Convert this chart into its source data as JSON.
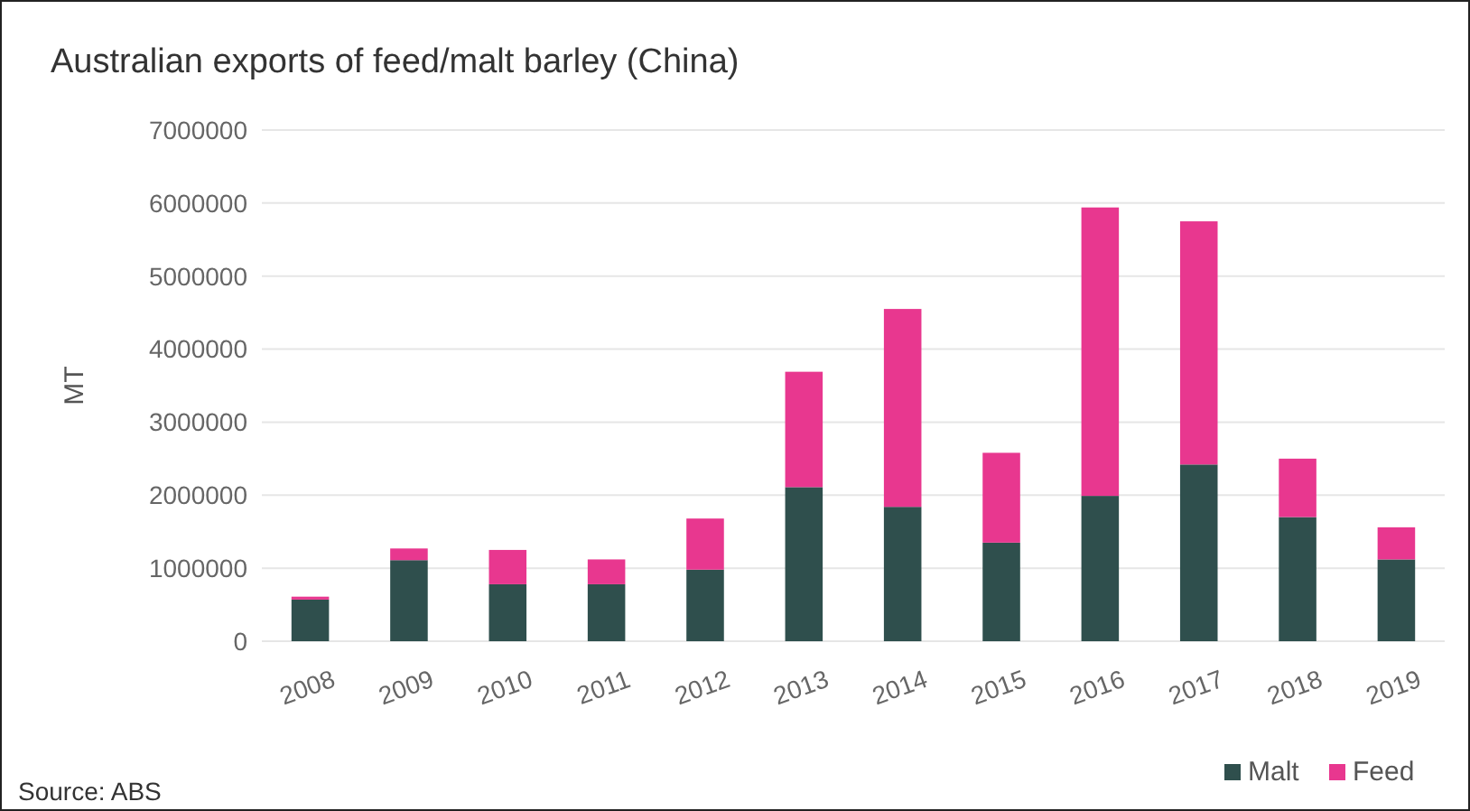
{
  "chart_data": {
    "type": "bar",
    "title": "Australian exports of feed/malt barley (China)",
    "ylabel": "MT",
    "categories": [
      "2008",
      "2009",
      "2010",
      "2011",
      "2012",
      "2013",
      "2014",
      "2015",
      "2016",
      "2017",
      "2018",
      "2019"
    ],
    "stacked": true,
    "series": [
      {
        "name": "Malt",
        "color": "#2f4f4d",
        "values": [
          570000,
          1110000,
          780000,
          780000,
          980000,
          2110000,
          1840000,
          1350000,
          1990000,
          2420000,
          1700000,
          1120000
        ]
      },
      {
        "name": "Feed",
        "color": "#e8378f",
        "values": [
          40000,
          160000,
          470000,
          340000,
          700000,
          1580000,
          2710000,
          1230000,
          3950000,
          3330000,
          800000,
          440000
        ]
      }
    ],
    "ylim": [
      0,
      7000000
    ],
    "yticks": [
      0,
      1000000,
      2000000,
      3000000,
      4000000,
      5000000,
      6000000,
      7000000
    ],
    "grid": "y",
    "legend": "bottom right",
    "annotations": [
      "Source: ABS"
    ]
  }
}
